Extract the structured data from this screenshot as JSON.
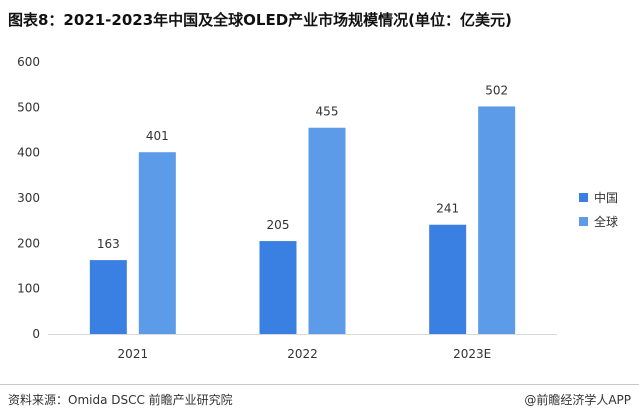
{
  "title": "图表8：2021-2023年中国及全球OLED产业市场规模情况(单位：亿美元)",
  "source": "资料来源：Omida DSCC 前瞻产业研究院",
  "brand": "@前瞻经济学人APP",
  "colors": {
    "china": "#3a80e3",
    "global": "#5b9be8",
    "axis": "#d9d9d9"
  },
  "chart_data": {
    "type": "bar",
    "title": "图表8：2021-2023年中国及全球OLED产业市场规模情况(单位：亿美元)",
    "xlabel": "",
    "ylabel": "",
    "categories": [
      "2021",
      "2022",
      "2023E"
    ],
    "series": [
      {
        "name": "中国",
        "values": [
          163,
          205,
          241
        ]
      },
      {
        "name": "全球",
        "values": [
          401,
          455,
          502
        ]
      }
    ],
    "ylim": [
      0,
      600
    ],
    "yticks": [
      "0",
      "100",
      "200",
      "300",
      "400",
      "500",
      "600"
    ],
    "legend": "right",
    "grid": false
  }
}
